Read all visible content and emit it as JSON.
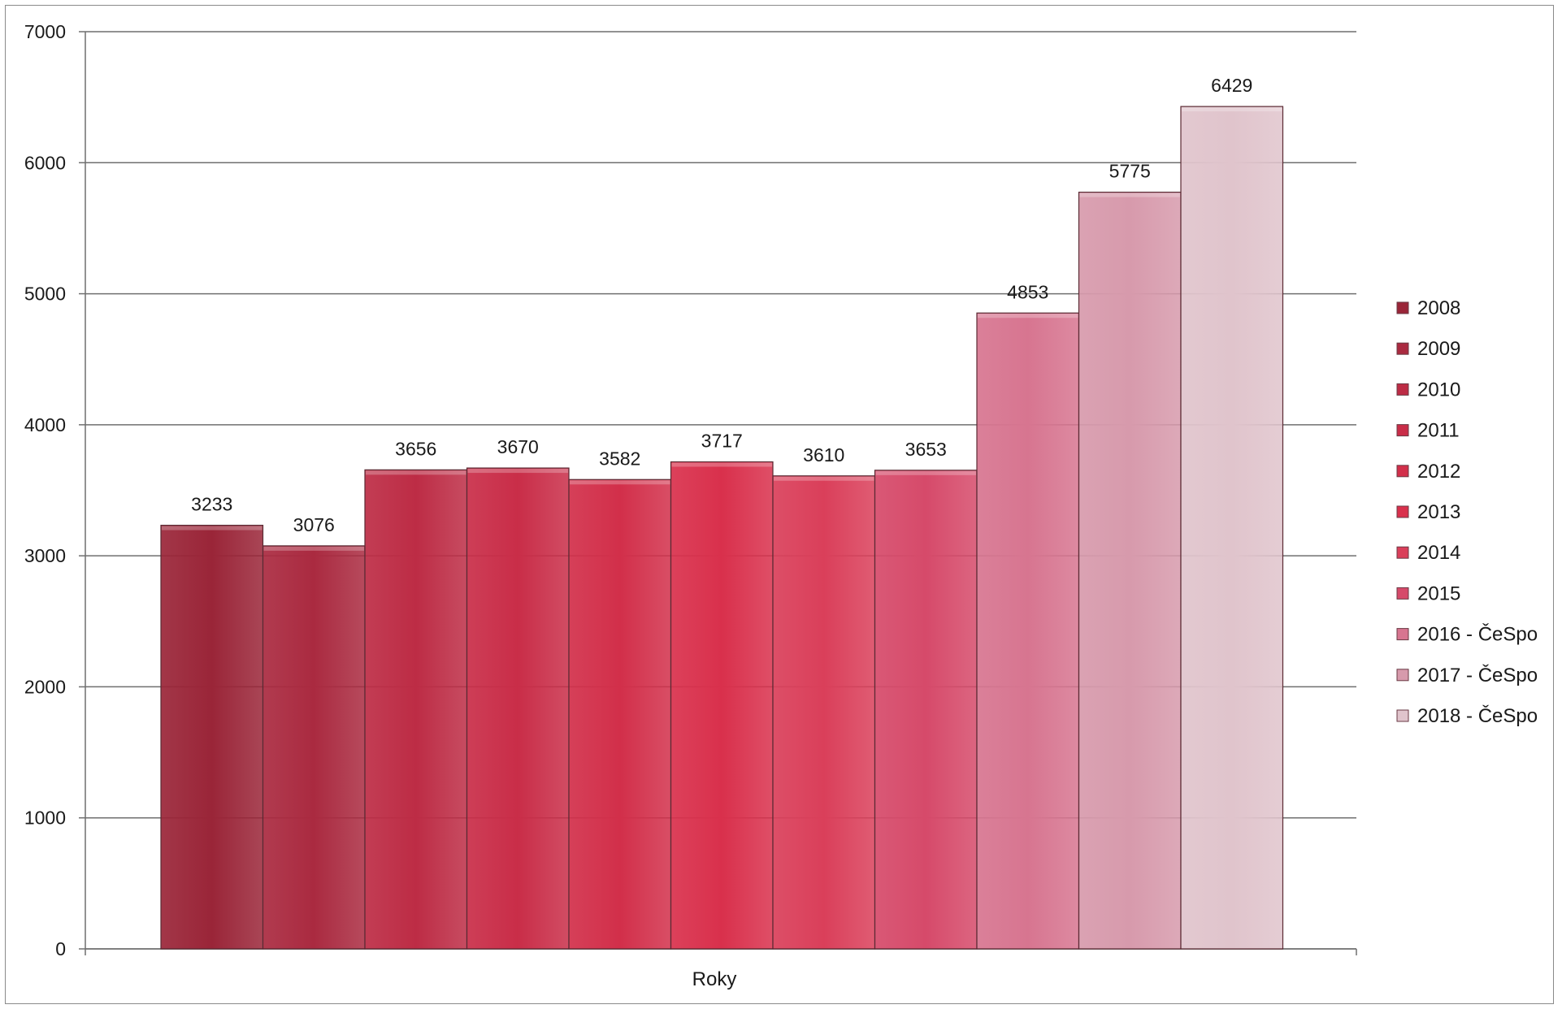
{
  "chart_data": {
    "type": "bar",
    "xlabel": "Roky",
    "ylabel": "",
    "ylim": [
      0,
      7000
    ],
    "yticks": [
      0,
      1000,
      2000,
      3000,
      4000,
      5000,
      6000,
      7000
    ],
    "grid": true,
    "legend_position": "right",
    "series": [
      {
        "name": "2008",
        "value": 3233,
        "color": "#9a2538"
      },
      {
        "name": "2009",
        "value": 3076,
        "color": "#aa2a40"
      },
      {
        "name": "2010",
        "value": 3656,
        "color": "#bd2c45"
      },
      {
        "name": "2011",
        "value": 3670,
        "color": "#c92d48"
      },
      {
        "name": "2012",
        "value": 3582,
        "color": "#d22f4a"
      },
      {
        "name": "2013",
        "value": 3717,
        "color": "#d9304c"
      },
      {
        "name": "2014",
        "value": 3610,
        "color": "#da3f5a"
      },
      {
        "name": "2015",
        "value": 3653,
        "color": "#d64a6a"
      },
      {
        "name": "2016 - ČeSpo",
        "value": 4853,
        "color": "#d77590"
      },
      {
        "name": "2017 - ČeSpo",
        "value": 5775,
        "color": "#d79aac"
      },
      {
        "name": "2018 - ČeSpo",
        "value": 6429,
        "color": "#e0c4cc"
      }
    ]
  }
}
